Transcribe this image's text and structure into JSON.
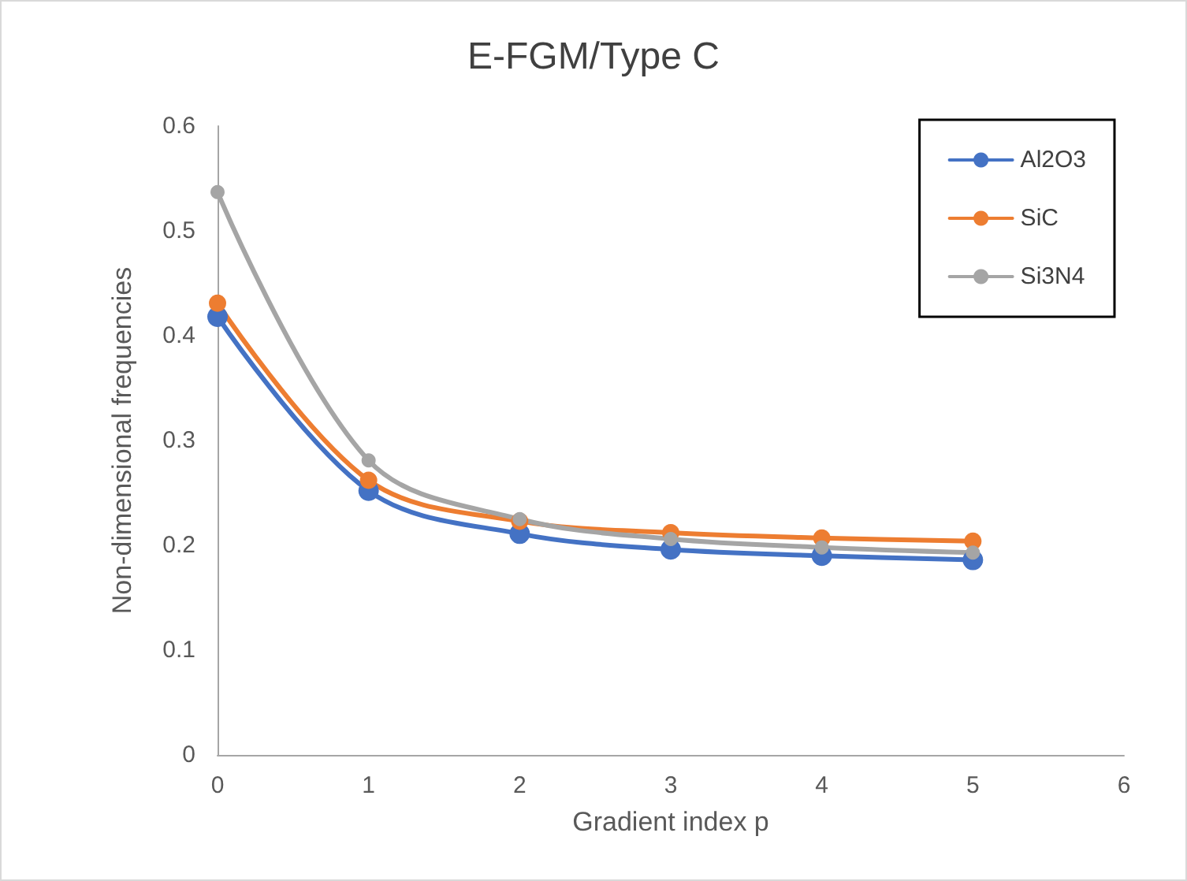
{
  "chart_data": {
    "type": "line",
    "title": "E-FGM/Type C",
    "xlabel": "Gradient index p",
    "ylabel": "Non-dimensional frequencies",
    "x": [
      0,
      1,
      2,
      3,
      4,
      5
    ],
    "series": [
      {
        "name": "Al2O3",
        "color": "#4472c4",
        "values": [
          0.418,
          0.252,
          0.211,
          0.196,
          0.19,
          0.186
        ]
      },
      {
        "name": "SiC",
        "color": "#ed7d31",
        "values": [
          0.431,
          0.262,
          0.223,
          0.212,
          0.207,
          0.204
        ]
      },
      {
        "name": "Si3N4",
        "color": "#a5a5a5",
        "values": [
          0.537,
          0.281,
          0.225,
          0.206,
          0.198,
          0.193
        ]
      }
    ],
    "xlim": [
      0,
      6
    ],
    "xticks": [
      0,
      1,
      2,
      3,
      4,
      5,
      6
    ],
    "ylim": [
      0,
      0.6
    ],
    "yticks": [
      0,
      0.1,
      0.2,
      0.3,
      0.4,
      0.5,
      0.6
    ],
    "grid": false,
    "legend": "top right",
    "marker": "circle",
    "line_style": "solid"
  }
}
